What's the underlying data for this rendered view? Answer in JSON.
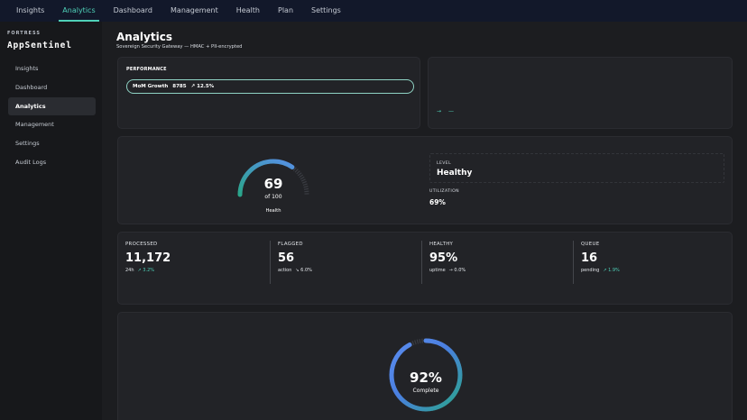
{
  "topnav": {
    "tabs": [
      {
        "label": "Insights",
        "active": false
      },
      {
        "label": "Analytics",
        "active": true
      },
      {
        "label": "Dashboard",
        "active": false
      },
      {
        "label": "Management",
        "active": false
      },
      {
        "label": "Health",
        "active": false
      },
      {
        "label": "Plan",
        "active": false
      },
      {
        "label": "Settings",
        "active": false
      }
    ]
  },
  "sidebar": {
    "brand_sup": "FORTRESS",
    "brand": "AppSentinel",
    "items": [
      {
        "label": "Insights",
        "active": false
      },
      {
        "label": "Dashboard",
        "active": false
      },
      {
        "label": "Analytics",
        "active": true
      },
      {
        "label": "Management",
        "active": false
      },
      {
        "label": "Settings",
        "active": false
      },
      {
        "label": "Audit Logs",
        "active": false
      }
    ]
  },
  "header": {
    "title": "Analytics",
    "subtitle": "Sovereign Security Gateway — HMAC + PII-encrypted"
  },
  "performance": {
    "label": "PERFORMANCE",
    "pill_name": "MoM Growth",
    "pill_value": "8785",
    "pill_change": "↗ 12.5%"
  },
  "side_card": {
    "arrow1": "→",
    "arrow2": "—"
  },
  "gauge": {
    "value": "69",
    "of": "of 100",
    "name": "Health",
    "fraction": 0.69
  },
  "level": {
    "label": "LEVEL",
    "value": "Healthy",
    "util_label": "UTILIZATION",
    "util_value": "69%"
  },
  "stats": [
    {
      "label": "PROCESSED",
      "value": "11,172",
      "sub": "24h",
      "trend": "↗ 3.2%",
      "trend_kind": "good"
    },
    {
      "label": "FLAGGED",
      "value": "56",
      "sub": "action",
      "trend": "↘ 6.0%",
      "trend_kind": "flat"
    },
    {
      "label": "HEALTHY",
      "value": "95%",
      "sub": "uptime",
      "trend": "→ 0.0%",
      "trend_kind": "flat"
    },
    {
      "label": "QUEUE",
      "value": "16",
      "sub": "pending",
      "trend": "↗ 1.9%",
      "trend_kind": "good"
    }
  ],
  "ring": {
    "value": "92%",
    "sub": "Complete",
    "fraction": 0.92
  },
  "colors": {
    "accent": "#4fd1b8",
    "blue": "#5b8def",
    "teal": "#2aa58a"
  }
}
